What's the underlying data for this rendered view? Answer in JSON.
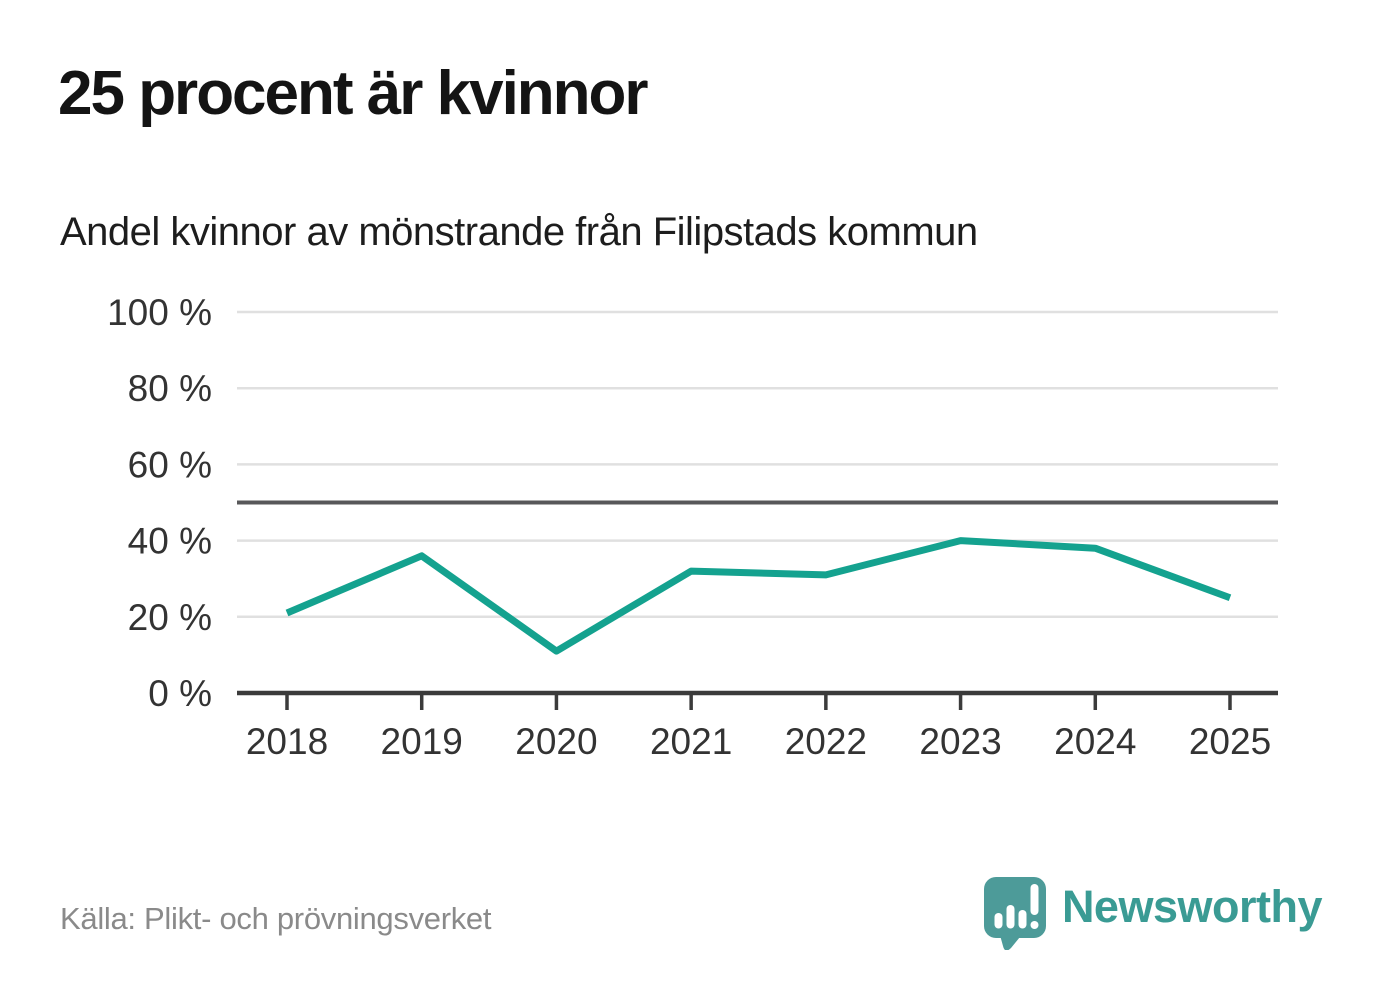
{
  "title": "25 procent är kvinnor",
  "subtitle": "Andel kvinnor av mönstrande från Filipstads kommun",
  "source": "Källa: Plikt- och prövningsverket",
  "brand": {
    "name": "Newsworthy"
  },
  "colors": {
    "line": "#14a28f",
    "grid": "#e0e0e0",
    "ref_line": "#58585a",
    "axis": "#3b3b3b",
    "tick_text": "#333333",
    "logo_icon": "#4d9b99",
    "logo_text": "#3a9b94"
  },
  "chart_data": {
    "type": "line",
    "title": "25 procent är kvinnor",
    "subtitle": "Andel kvinnor av mönstrande från Filipstads kommun",
    "x": [
      2018,
      2019,
      2020,
      2021,
      2022,
      2023,
      2024,
      2025
    ],
    "series": [
      {
        "name": "Andel kvinnor av mönstrande",
        "values": [
          21,
          36,
          11,
          32,
          31,
          40,
          38,
          25
        ]
      }
    ],
    "unit": "%",
    "y_ticks": [
      0,
      20,
      40,
      60,
      80,
      100
    ],
    "y_tick_suffix": " %",
    "ylim": [
      0,
      100
    ],
    "reference_line": 50,
    "grid": "horizontal",
    "legend": "none"
  }
}
